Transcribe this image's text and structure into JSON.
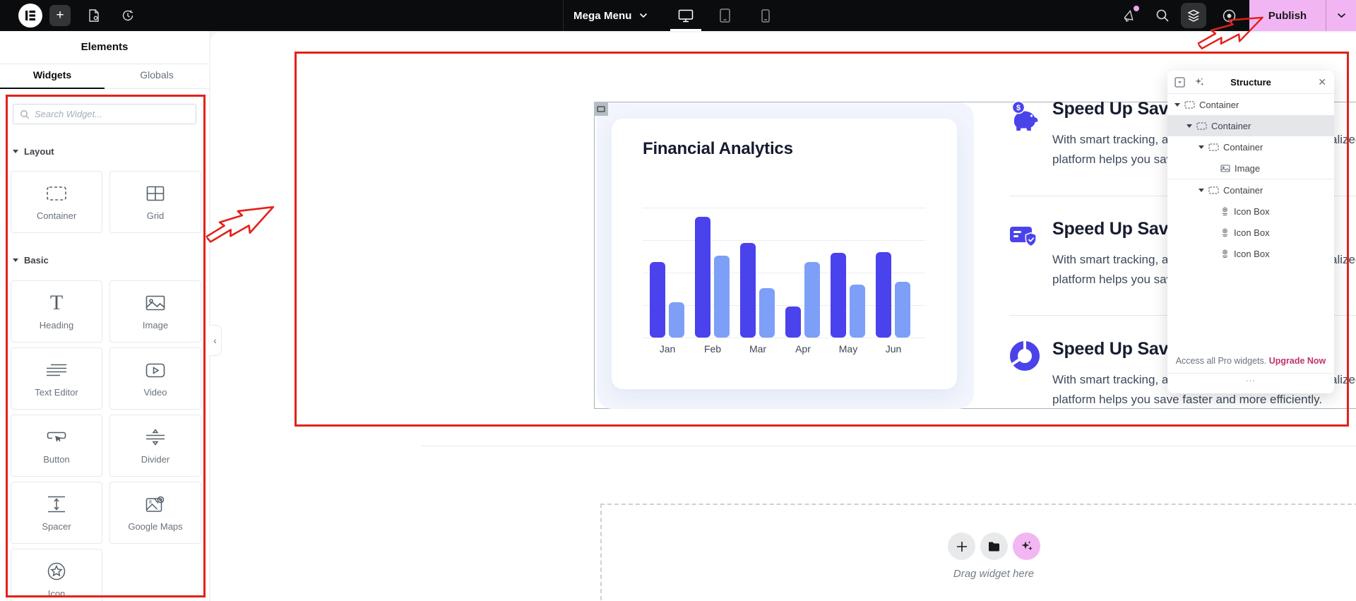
{
  "topbar": {
    "menu_label": "Mega Menu",
    "publish_label": "Publish"
  },
  "panel": {
    "title": "Elements",
    "tabs": [
      {
        "label": "Widgets"
      },
      {
        "label": "Globals"
      }
    ],
    "search_placeholder": "Search Widget...",
    "sections": [
      {
        "title": "Layout",
        "widgets": [
          {
            "label": "Container",
            "icon": "container-icon"
          },
          {
            "label": "Grid",
            "icon": "grid-icon"
          }
        ]
      },
      {
        "title": "Basic",
        "widgets": [
          {
            "label": "Heading",
            "icon": "heading-icon"
          },
          {
            "label": "Image",
            "icon": "image-icon"
          },
          {
            "label": "Text Editor",
            "icon": "text-editor-icon"
          },
          {
            "label": "Video",
            "icon": "video-icon"
          },
          {
            "label": "Button",
            "icon": "button-icon"
          },
          {
            "label": "Divider",
            "icon": "divider-icon"
          },
          {
            "label": "Spacer",
            "icon": "spacer-icon"
          },
          {
            "label": "Google Maps",
            "icon": "google-maps-icon"
          },
          {
            "label": "Icon",
            "icon": "icon-widget-icon"
          }
        ]
      }
    ]
  },
  "canvas": {
    "icon_boxes": [
      {
        "icon": "piggy-bank-icon",
        "title": "Speed Up Savings Goals",
        "body": "With smart tracking, automatic transfers, and personalized insights, our platform helps you save faster and more efficiently."
      },
      {
        "icon": "credit-card-shield-icon",
        "title": "Speed Up Savings Goals",
        "body": "With smart tracking, automatic transfers, and personalized insights, our platform helps you save faster and more efficiently."
      },
      {
        "icon": "donut-chart-icon",
        "title": "Speed Up Savings Goals",
        "body": "With smart tracking, automatic transfers, and personalized insights, our platform helps you save faster and more efficiently."
      }
    ],
    "drag_hint": "Drag widget here"
  },
  "chart_data": {
    "type": "bar",
    "title": "Financial Analytics",
    "categories": [
      "Jan",
      "Feb",
      "Mar",
      "Apr",
      "May",
      "Jun"
    ],
    "series": [
      {
        "name": "primary",
        "color": "#4a42ec",
        "values": [
          58,
          93,
          73,
          24,
          65,
          66
        ]
      },
      {
        "name": "secondary",
        "color": "#7e9ff8",
        "values": [
          27,
          63,
          38,
          58,
          41,
          43
        ]
      }
    ],
    "xlabel": "",
    "ylabel": "",
    "ylim": [
      0,
      100
    ],
    "grid": true,
    "legend": "none"
  },
  "structure_panel": {
    "title": "Structure",
    "tree": [
      {
        "label": "Container",
        "depth": 0
      },
      {
        "label": "Container",
        "depth": 1
      },
      {
        "label": "Container",
        "depth": 2
      },
      {
        "label": "Image",
        "depth": 3
      },
      {
        "label": "Container",
        "depth": 2
      },
      {
        "label": "Icon Box",
        "depth": 3
      },
      {
        "label": "Icon Box",
        "depth": 3
      },
      {
        "label": "Icon Box",
        "depth": 3
      }
    ],
    "footer_text": "Access all Pro widgets.",
    "footer_link": "Upgrade Now",
    "more_label": "..."
  },
  "colors": {
    "accent_red": "#e32119",
    "publish_pink": "#f2b5f3",
    "widget_indigo": "#4a43ea",
    "upgrade_pink": "#c0326b"
  }
}
